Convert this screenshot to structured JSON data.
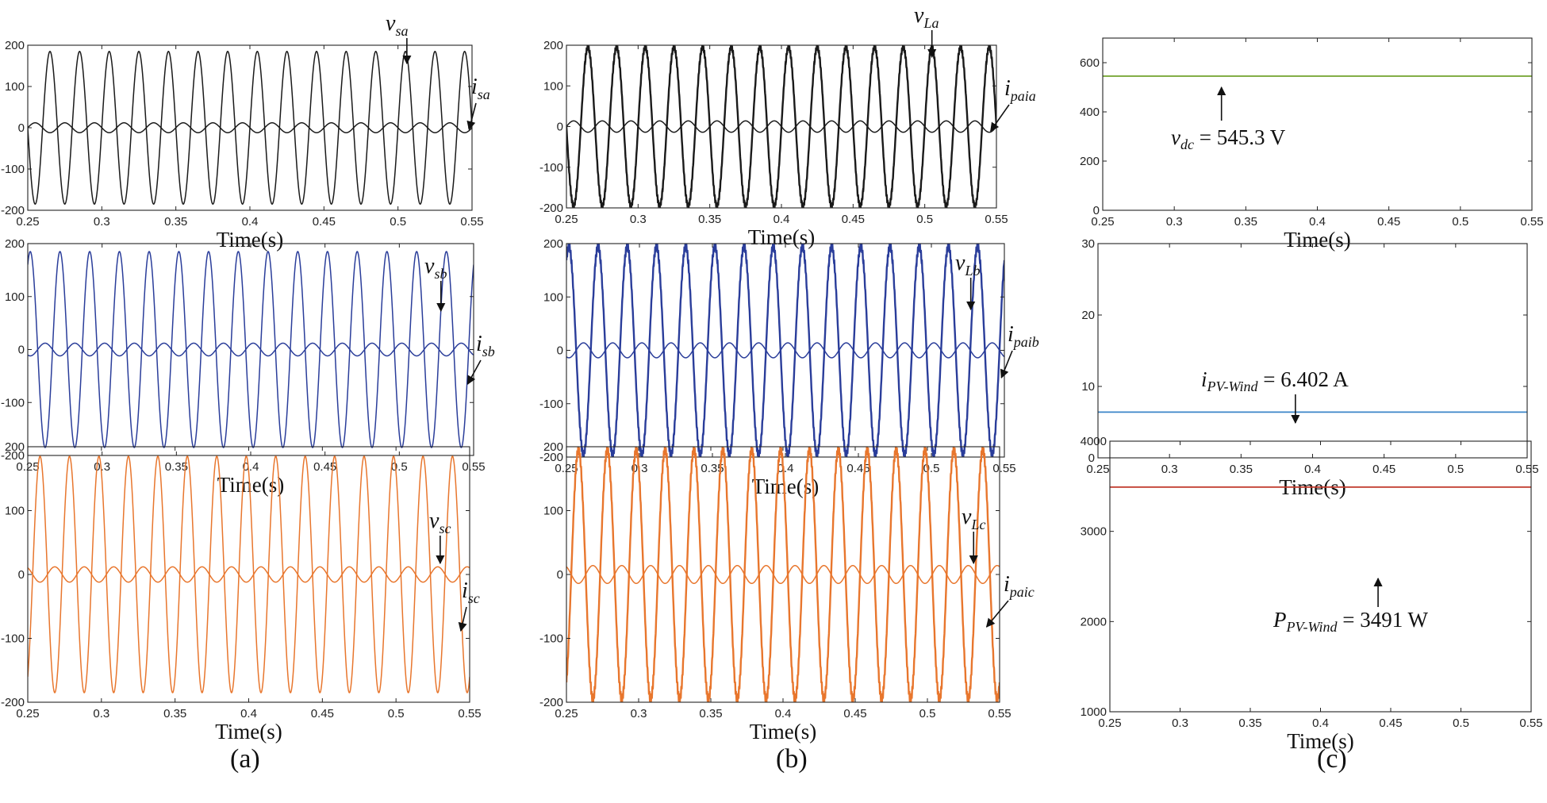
{
  "figure": {
    "captions": [
      "(a)",
      "(b)",
      "(c)"
    ]
  },
  "chart_data": [
    {
      "id": "a1",
      "type": "line",
      "color": "#1a1a1a",
      "xlabel": "Time(s)",
      "ylabel": "",
      "xlim": [
        0.25,
        0.55
      ],
      "ylim": [
        -200,
        200
      ],
      "xticks": [
        0.25,
        0.3,
        0.35,
        0.4,
        0.45,
        0.5,
        0.55
      ],
      "yticks": [
        -200,
        -100,
        0,
        100,
        200
      ],
      "series": [
        {
          "name": "v_sa",
          "kind": "sine",
          "amplitude": 185,
          "frequency_hz": 50,
          "phase_deg": 0
        },
        {
          "name": "i_sa",
          "kind": "sine",
          "amplitude": 12,
          "frequency_hz": 50,
          "phase_deg": 180
        }
      ],
      "annotations": [
        {
          "base": "v",
          "sub": "sa",
          "arrow_to_x": 0.506
        },
        {
          "base": "i",
          "sub": "sa",
          "arrow_to_x": 0.548
        }
      ]
    },
    {
      "id": "b1",
      "type": "line",
      "color": "#1a1a1a",
      "xlabel": "Time(s)",
      "ylabel": "",
      "xlim": [
        0.25,
        0.55
      ],
      "ylim": [
        -200,
        200
      ],
      "xticks": [
        0.25,
        0.3,
        0.35,
        0.4,
        0.45,
        0.5,
        0.55
      ],
      "yticks": [
        -200,
        -100,
        0,
        100,
        200
      ],
      "series": [
        {
          "name": "v_La",
          "kind": "sine",
          "amplitude": 195,
          "frequency_hz": 50,
          "phase_deg": 0,
          "ripple": true
        },
        {
          "name": "i_paia",
          "kind": "sine",
          "amplitude": 14,
          "frequency_hz": 50,
          "phase_deg": 180
        }
      ],
      "annotations": [
        {
          "base": "v",
          "sub": "La",
          "arrow_to_x": 0.505
        },
        {
          "base": "i",
          "sub": "paia",
          "arrow_to_x": 0.546
        }
      ]
    },
    {
      "id": "c1",
      "type": "line",
      "color": "#7aa83a",
      "xlabel": "Time(s)",
      "ylabel": "",
      "xlim": [
        0.25,
        0.55
      ],
      "ylim": [
        0,
        700
      ],
      "xticks": [
        0.25,
        0.3,
        0.35,
        0.4,
        0.45,
        0.5,
        0.55
      ],
      "yticks": [
        0,
        200,
        400,
        600
      ],
      "series": [
        {
          "name": "v_dc",
          "kind": "const",
          "value": 545.3
        }
      ],
      "annotations": [
        {
          "base": "v",
          "sub": "dc",
          "text": " = 545.3 V",
          "arrow_to_x": 0.333,
          "arrow_up": true
        }
      ]
    },
    {
      "id": "a2",
      "type": "line",
      "color": "#2a3d9a",
      "xlabel": "Time(s)",
      "ylabel": "",
      "xlim": [
        0.25,
        0.55
      ],
      "ylim": [
        -200,
        200
      ],
      "xticks": [
        0.25,
        0.3,
        0.35,
        0.4,
        0.45,
        0.5,
        0.55
      ],
      "yticks": [
        -200,
        -100,
        0,
        100,
        200
      ],
      "series": [
        {
          "name": "v_sb",
          "kind": "sine",
          "amplitude": 185,
          "frequency_hz": 50,
          "phase_deg": -120
        },
        {
          "name": "i_sb",
          "kind": "sine",
          "amplitude": 12,
          "frequency_hz": 50,
          "phase_deg": 60
        }
      ],
      "annotations": [
        {
          "base": "v",
          "sub": "sb",
          "arrow_to_x": 0.528
        },
        {
          "base": "i",
          "sub": "sb",
          "arrow_to_x": 0.546
        }
      ]
    },
    {
      "id": "b2",
      "type": "line",
      "color": "#2a3d9a",
      "xlabel": "Time(s)",
      "ylabel": "",
      "xlim": [
        0.25,
        0.55
      ],
      "ylim": [
        -200,
        200
      ],
      "xticks": [
        0.25,
        0.3,
        0.35,
        0.4,
        0.45,
        0.5,
        0.55
      ],
      "yticks": [
        -200,
        -100,
        0,
        100,
        200
      ],
      "series": [
        {
          "name": "v_Lb",
          "kind": "sine",
          "amplitude": 195,
          "frequency_hz": 50,
          "phase_deg": -120,
          "ripple": true
        },
        {
          "name": "i_paib",
          "kind": "sine",
          "amplitude": 14,
          "frequency_hz": 50,
          "phase_deg": 60
        }
      ],
      "annotations": [
        {
          "base": "v",
          "sub": "Lb",
          "arrow_to_x": 0.527
        },
        {
          "base": "i",
          "sub": "paib",
          "arrow_to_x": 0.548
        }
      ]
    },
    {
      "id": "c2",
      "type": "line",
      "color": "#3b86c8",
      "xlabel": "Time(s)",
      "ylabel": "",
      "xlim": [
        0.25,
        0.55
      ],
      "ylim": [
        0,
        30
      ],
      "xticks": [
        0.25,
        0.3,
        0.35,
        0.4,
        0.45,
        0.5,
        0.55
      ],
      "yticks": [
        0,
        10,
        20,
        30
      ],
      "series": [
        {
          "name": "i_PV-Wind",
          "kind": "const",
          "value": 6.402
        }
      ],
      "annotations": [
        {
          "base": "i",
          "sub": "PV-Wind",
          "text": " = 6.402 A",
          "arrow_to_x": 0.388,
          "arrow_up": false
        }
      ]
    },
    {
      "id": "a3",
      "type": "line",
      "color": "#e8762d",
      "xlabel": "Time(s)",
      "ylabel": "",
      "xlim": [
        0.25,
        0.55
      ],
      "ylim": [
        -200,
        200
      ],
      "xticks": [
        0.25,
        0.3,
        0.35,
        0.4,
        0.45,
        0.5,
        0.55
      ],
      "yticks": [
        -200,
        -100,
        0,
        100,
        200
      ],
      "series": [
        {
          "name": "v_sc",
          "kind": "sine",
          "amplitude": 185,
          "frequency_hz": 50,
          "phase_deg": 120
        },
        {
          "name": "i_sc",
          "kind": "sine",
          "amplitude": 12,
          "frequency_hz": 50,
          "phase_deg": -60
        }
      ],
      "annotations": [
        {
          "base": "v",
          "sub": "sc",
          "arrow_to_x": 0.53
        },
        {
          "base": "i",
          "sub": "sc",
          "arrow_to_x": 0.544
        }
      ]
    },
    {
      "id": "b3",
      "type": "line",
      "color": "#e8762d",
      "xlabel": "Time(s)",
      "ylabel": "",
      "xlim": [
        0.25,
        0.55
      ],
      "ylim": [
        -200,
        200
      ],
      "xticks": [
        0.25,
        0.3,
        0.35,
        0.4,
        0.45,
        0.5,
        0.55
      ],
      "yticks": [
        -200,
        -100,
        0,
        100,
        200
      ],
      "series": [
        {
          "name": "v_Lc",
          "kind": "sine",
          "amplitude": 195,
          "frequency_hz": 50,
          "phase_deg": 120,
          "ripple": true
        },
        {
          "name": "i_paic",
          "kind": "sine",
          "amplitude": 14,
          "frequency_hz": 50,
          "phase_deg": -60
        }
      ],
      "annotations": [
        {
          "base": "v",
          "sub": "Lc",
          "arrow_to_x": 0.532
        },
        {
          "base": "i",
          "sub": "paic",
          "arrow_to_x": 0.541
        }
      ]
    },
    {
      "id": "c3",
      "type": "line",
      "color": "#c0392b",
      "xlabel": "Time(s)",
      "ylabel": "",
      "xlim": [
        0.25,
        0.55
      ],
      "ylim": [
        1000,
        4000
      ],
      "xticks": [
        0.25,
        0.3,
        0.35,
        0.4,
        0.45,
        0.5,
        0.55
      ],
      "yticks": [
        1000,
        2000,
        3000,
        4000
      ],
      "series": [
        {
          "name": "P_PV-Wind",
          "kind": "const",
          "value": 3491
        }
      ],
      "annotations": [
        {
          "base": "P",
          "sub": "PV-Wind",
          "text": " = 3491 W",
          "arrow_to_x": 0.441,
          "arrow_up": true
        }
      ]
    }
  ]
}
